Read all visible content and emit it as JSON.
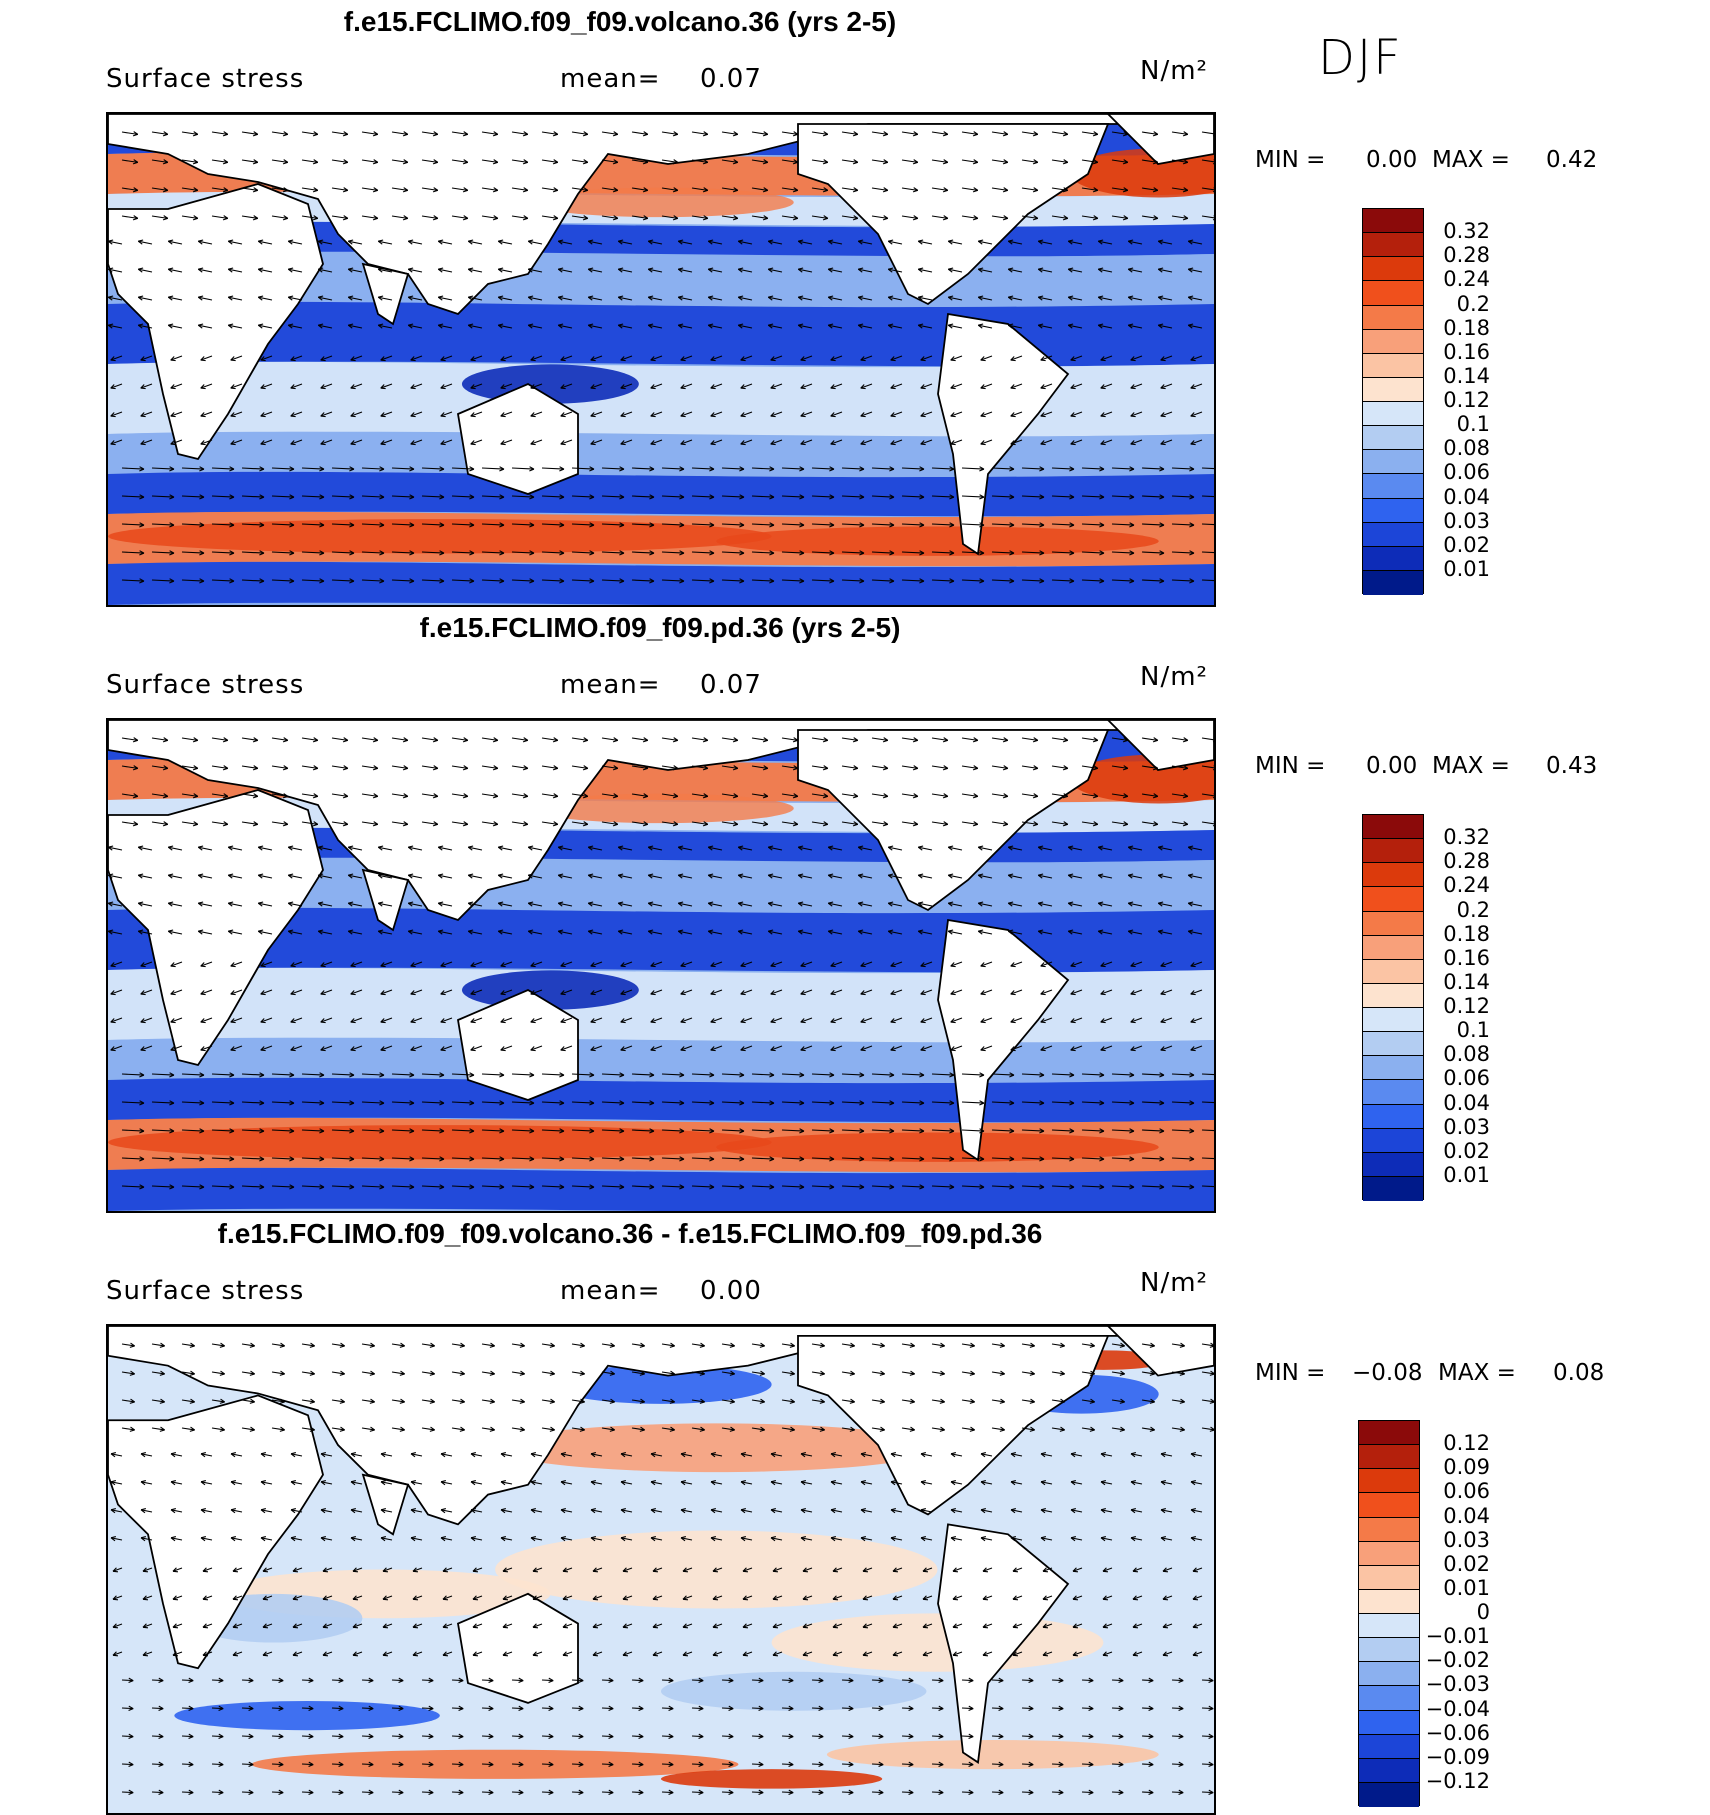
{
  "season": "DJF",
  "panels": [
    {
      "title": "f.e15.FCLIMO.f09_f09.volcano.36 (yrs 2-5)",
      "variable": "Surface stress",
      "mean_label": "mean=",
      "mean_value": "0.07",
      "units": "N/m²",
      "min_label": "MIN =",
      "min_value": "0.00",
      "max_label": "MAX =",
      "max_value": "0.42",
      "colorbar": {
        "levels": [
          "0.32",
          "0.28",
          "0.24",
          "0.2",
          "0.18",
          "0.16",
          "0.14",
          "0.12",
          "0.1",
          "0.08",
          "0.06",
          "0.04",
          "0.03",
          "0.02",
          "0.01"
        ],
        "colors": [
          "#8b0a0a",
          "#b4200c",
          "#dc3a0c",
          "#f0501c",
          "#f47a48",
          "#f8a07a",
          "#fbc4a4",
          "#fde3cf",
          "#d6e6f9",
          "#b3cdf2",
          "#8bb0ef",
          "#5a8af0",
          "#2f63ef",
          "#1c45d8",
          "#0d2cb8",
          "#001a8a"
        ]
      }
    },
    {
      "title": "f.e15.FCLIMO.f09_f09.pd.36 (yrs 2-5)",
      "variable": "Surface stress",
      "mean_label": "mean=",
      "mean_value": "0.07",
      "units": "N/m²",
      "min_label": "MIN =",
      "min_value": "0.00",
      "max_label": "MAX =",
      "max_value": "0.43",
      "colorbar": {
        "levels": [
          "0.32",
          "0.28",
          "0.24",
          "0.2",
          "0.18",
          "0.16",
          "0.14",
          "0.12",
          "0.1",
          "0.08",
          "0.06",
          "0.04",
          "0.03",
          "0.02",
          "0.01"
        ],
        "colors": [
          "#8b0a0a",
          "#b4200c",
          "#dc3a0c",
          "#f0501c",
          "#f47a48",
          "#f8a07a",
          "#fbc4a4",
          "#fde3cf",
          "#d6e6f9",
          "#b3cdf2",
          "#8bb0ef",
          "#5a8af0",
          "#2f63ef",
          "#1c45d8",
          "#0d2cb8",
          "#001a8a"
        ]
      }
    },
    {
      "title": "f.e15.FCLIMO.f09_f09.volcano.36 - f.e15.FCLIMO.f09_f09.pd.36",
      "variable": "Surface stress",
      "mean_label": "mean=",
      "mean_value": "0.00",
      "units": "N/m²",
      "min_label": "MIN =",
      "min_value": "−0.08",
      "max_label": "MAX =",
      "max_value": "0.08",
      "colorbar": {
        "levels": [
          "0.12",
          "0.09",
          "0.06",
          "0.04",
          "0.03",
          "0.02",
          "0.01",
          "0",
          "−0.01",
          "−0.02",
          "−0.03",
          "−0.04",
          "−0.06",
          "−0.09",
          "−0.12"
        ],
        "colors": [
          "#8b0a0a",
          "#b4200c",
          "#dc3a0c",
          "#f0501c",
          "#f47a48",
          "#f8a07a",
          "#fbc4a4",
          "#fde3cf",
          "#d6e6f9",
          "#b3cdf2",
          "#8bb0ef",
          "#5a8af0",
          "#2f63ef",
          "#1c45d8",
          "#0d2cb8",
          "#001a8a"
        ]
      }
    }
  ],
  "field_colors": {
    "ocean_low": "#1c45d8",
    "ocean_mid": "#8bb0ef",
    "ocean_light": "#d6e6f9",
    "ocean_high": "#f47a48",
    "ocean_peach": "#fde3cf",
    "land": "#ffffff",
    "coast": "#000000"
  }
}
